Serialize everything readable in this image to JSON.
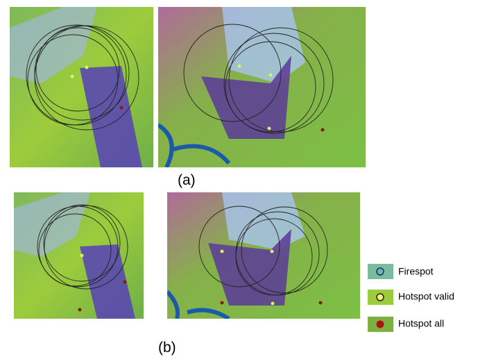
{
  "panels": {
    "a": {
      "label": "(a)"
    },
    "b": {
      "label": "(b)"
    }
  },
  "legend": [
    {
      "label": "Firespot"
    },
    {
      "label": "Hotspot valid"
    },
    {
      "label": "Hotspot all"
    }
  ]
}
